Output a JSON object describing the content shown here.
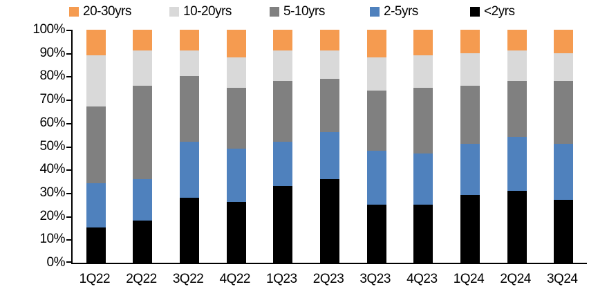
{
  "chart_data": {
    "type": "bar",
    "variant": "stacked-100",
    "title": "",
    "xlabel": "",
    "ylabel": "",
    "grid": false,
    "legend_position": "top",
    "legend_order": [
      "20-30yrs",
      "10-20yrs",
      "5-10yrs",
      "2-5yrs",
      "<2yrs"
    ],
    "categories": [
      "1Q22",
      "2Q22",
      "3Q22",
      "4Q22",
      "1Q23",
      "2Q23",
      "3Q23",
      "4Q23",
      "1Q24",
      "2Q24",
      "3Q24"
    ],
    "series": [
      {
        "name": "<2yrs",
        "color": "#000000",
        "values": [
          15,
          18,
          28,
          26,
          33,
          36,
          25,
          25,
          29,
          31,
          27
        ]
      },
      {
        "name": "2-5yrs",
        "color": "#4F81BD",
        "values": [
          19,
          18,
          24,
          23,
          19,
          20,
          23,
          22,
          22,
          23,
          24
        ]
      },
      {
        "name": "5-10yrs",
        "color": "#808080",
        "values": [
          33,
          40,
          28,
          26,
          26,
          23,
          26,
          28,
          25,
          24,
          27
        ]
      },
      {
        "name": "10-20yrs",
        "color": "#D9D9D9",
        "values": [
          22,
          15,
          11,
          13,
          13,
          12,
          14,
          14,
          14,
          13,
          12
        ]
      },
      {
        "name": "20-30yrs",
        "color": "#F59B50",
        "values": [
          11,
          9,
          9,
          12,
          9,
          9,
          12,
          11,
          10,
          9,
          10
        ]
      }
    ],
    "y_axis": {
      "min": 0,
      "max": 100,
      "tick_step": 10,
      "ticks": [
        "0%",
        "10%",
        "20%",
        "30%",
        "40%",
        "50%",
        "60%",
        "70%",
        "80%",
        "90%",
        "100%"
      ]
    }
  }
}
